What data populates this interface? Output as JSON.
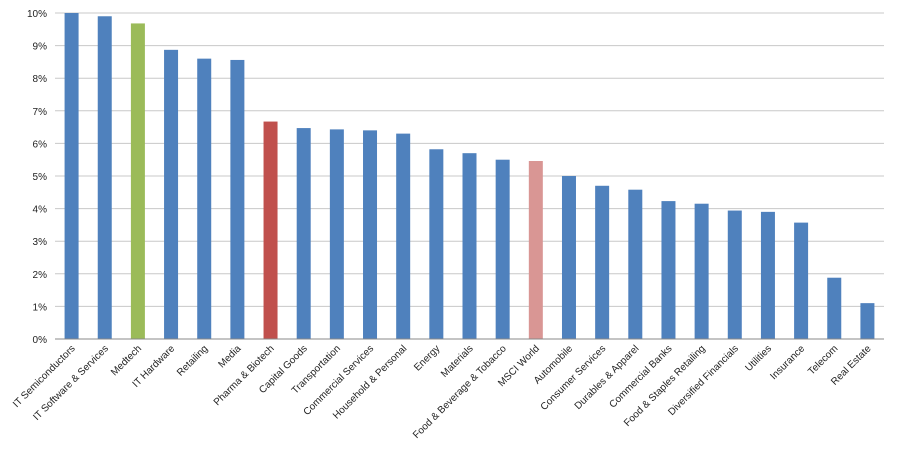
{
  "chart_data": {
    "type": "bar",
    "title": "",
    "xlabel": "",
    "ylabel": "",
    "ylim": [
      0,
      10
    ],
    "y_ticks": [
      "0%",
      "1%",
      "2%",
      "3%",
      "4%",
      "5%",
      "6%",
      "7%",
      "8%",
      "9%",
      "10%"
    ],
    "grid": true,
    "legend": "none",
    "categories": [
      "IT Semiconductors",
      "IT Software & Services",
      "Medtech",
      "IT Hardware",
      "Retailing",
      "Media",
      "Pharma & Biotech",
      "Capital Goods",
      "Transportation",
      "Commercial Services",
      "Household & Personal",
      "Energy",
      "Materials",
      "Food & Beverage & Tobacco",
      "MSCI World",
      "Automobile",
      "Consumer Services",
      "Durables & Apparel",
      "Commercial Banks",
      "Food & Staples Retailing",
      "Diversified Financials",
      "Utilities",
      "Insurance",
      "Telecom",
      "Real Estate"
    ],
    "values": [
      10.0,
      9.9,
      9.68,
      8.87,
      8.6,
      8.56,
      6.67,
      6.47,
      6.43,
      6.4,
      6.3,
      5.82,
      5.7,
      5.5,
      5.46,
      5.0,
      4.7,
      4.58,
      4.23,
      4.15,
      3.94,
      3.9,
      3.57,
      1.88,
      1.1
    ],
    "colors": {
      "default": "#4f81bd",
      "highlights": {
        "Medtech": "#9bbb59",
        "Pharma & Biotech": "#c0504d",
        "MSCI World": "#d99694"
      },
      "grid": "#c8c8c8",
      "axis": "#888888"
    }
  }
}
